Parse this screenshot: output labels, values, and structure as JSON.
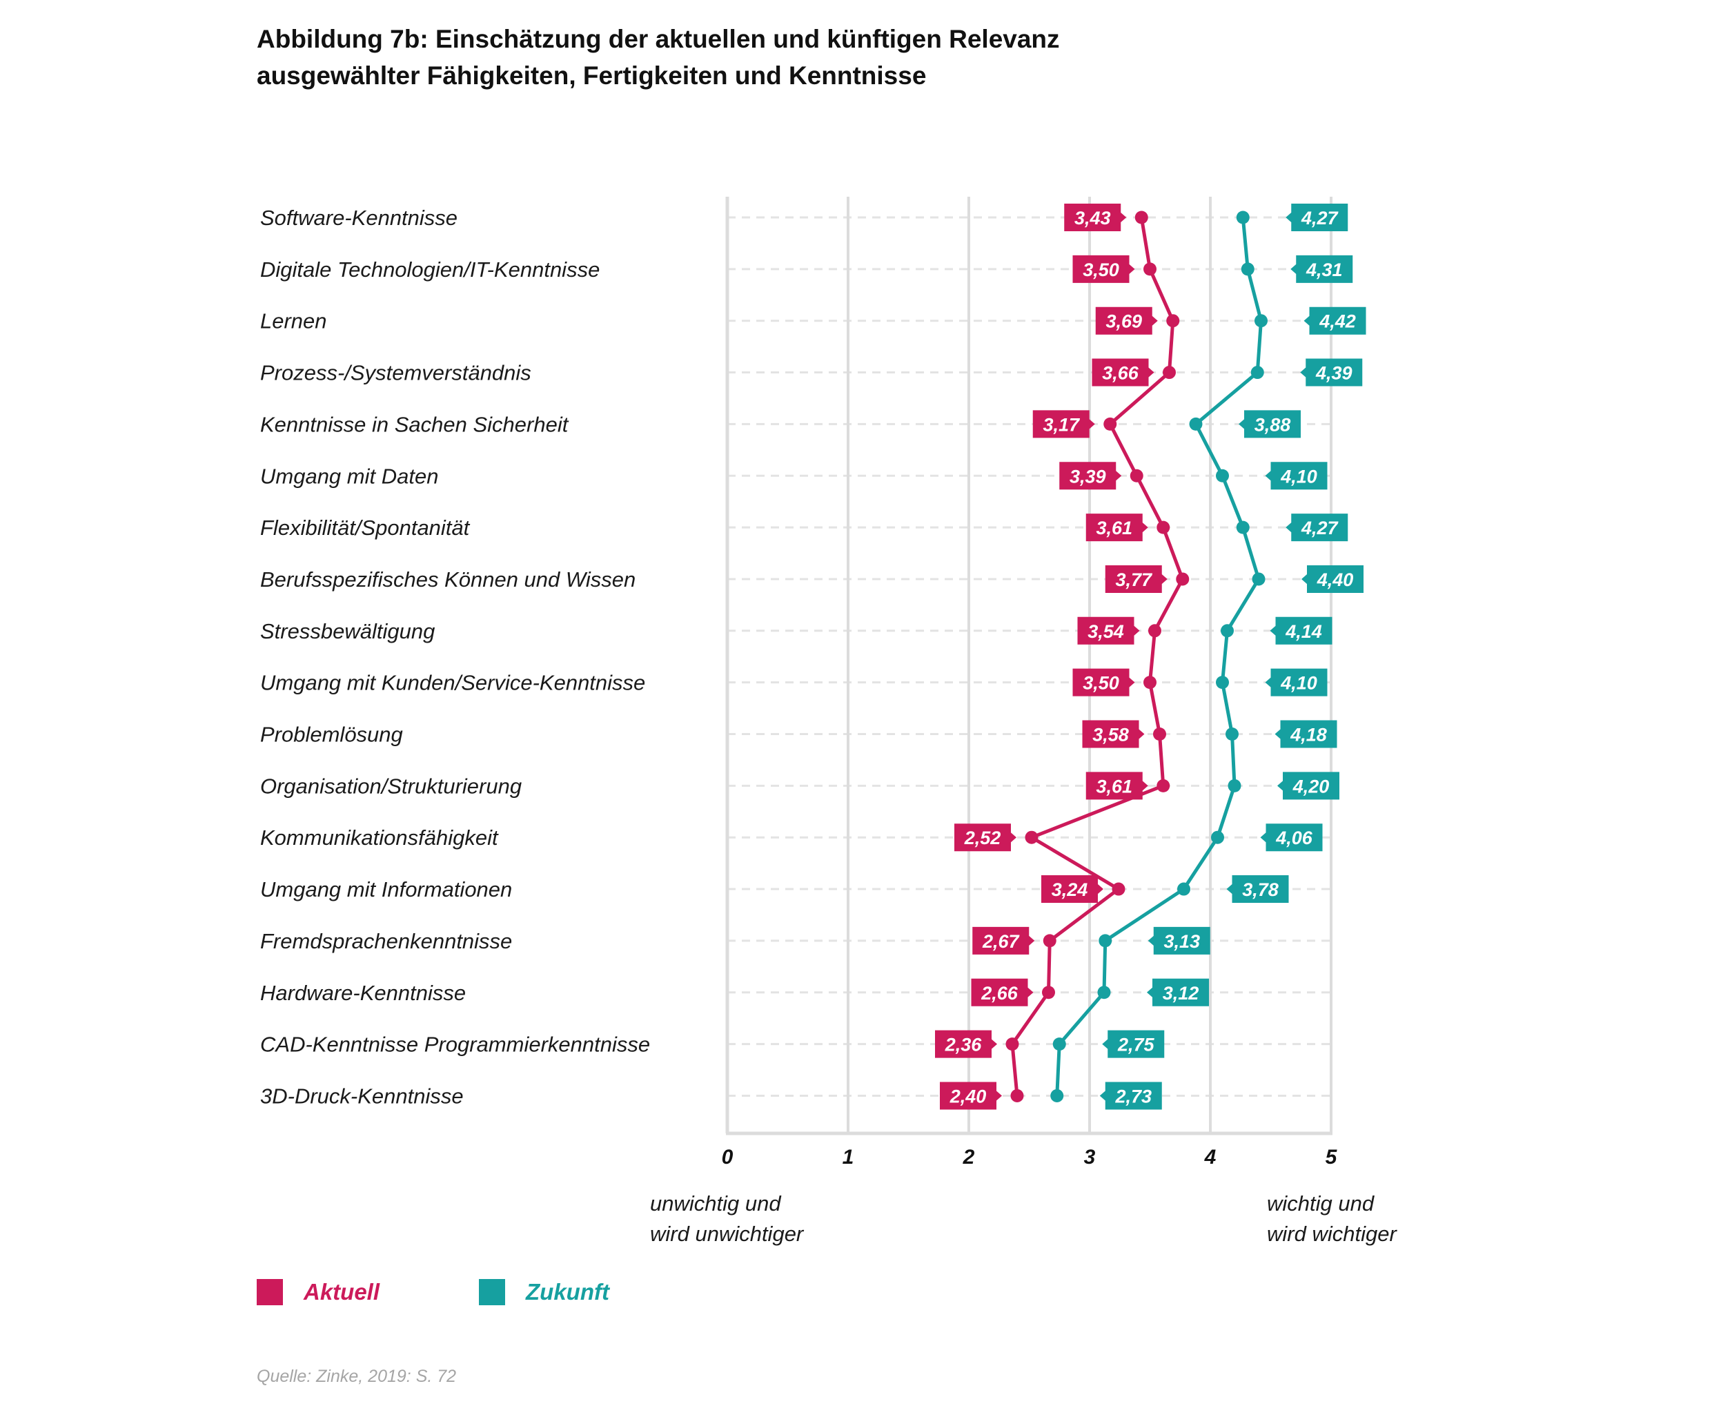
{
  "title_lines": [
    "Abbildung 7b: Einschätzung der aktuellen und künftigen Relevanz",
    "ausgewählter Fähigkeiten, Fertigkeiten und Kenntnisse"
  ],
  "axis_notes": {
    "left": [
      "unwichtig und",
      "wird unwichtiger"
    ],
    "right": [
      "wichtig und",
      "wird wichtiger"
    ]
  },
  "source": "Quelle: Zinke, 2019: S. 72",
  "colors": {
    "aktuell": "#cc1a5a",
    "zukunft": "#16a0a0",
    "grid": "#e3e3e3",
    "axis": "#dcdcdc"
  },
  "chart_data": {
    "type": "line",
    "orientation": "horizontal",
    "xlim": [
      0,
      5
    ],
    "xticks": [
      "0",
      "1",
      "2",
      "3",
      "4",
      "5"
    ],
    "grid": true,
    "legend_position": "bottom-left",
    "categories": [
      "Software-Kenntnisse",
      "Digitale Technologien/IT-Kenntnisse",
      "Lernen",
      "Prozess-/Systemverständnis",
      "Kenntnisse in Sachen Sicherheit",
      "Umgang mit Daten",
      "Flexibilität/Spontanität",
      "Berufsspezifisches Können und Wissen",
      "Stressbewältigung",
      "Umgang mit Kunden/Service-Kenntnisse",
      "Problemlösung",
      "Organisation/Strukturierung",
      "Kommunikationsfähigkeit",
      "Umgang mit Informationen",
      "Fremdsprachenkenntnisse",
      "Hardware-Kenntnisse",
      "CAD-Kenntnisse Programmierkenntnisse",
      "3D-Druck-Kenntnisse"
    ],
    "series": [
      {
        "name": "Aktuell",
        "key": "aktuell",
        "values": [
          3.43,
          3.5,
          3.69,
          3.66,
          3.17,
          3.39,
          3.61,
          3.77,
          3.54,
          3.5,
          3.58,
          3.61,
          2.52,
          3.24,
          2.67,
          2.66,
          2.36,
          2.4
        ],
        "labels": [
          "3,43",
          "3,50",
          "3,69",
          "3,66",
          "3,17",
          "3,39",
          "3,61",
          "3,77",
          "3,54",
          "3,50",
          "3,58",
          "3,61",
          "2,52",
          "3,24",
          "2,67",
          "2,66",
          "2,36",
          "2,40"
        ]
      },
      {
        "name": "Zukunft",
        "key": "zukunft",
        "values": [
          4.27,
          4.31,
          4.42,
          4.39,
          3.88,
          4.1,
          4.27,
          4.4,
          4.14,
          4.1,
          4.18,
          4.2,
          4.06,
          3.78,
          3.13,
          3.12,
          2.75,
          2.73
        ],
        "labels": [
          "4,27",
          "4,31",
          "4,42",
          "4,39",
          "3,88",
          "4,10",
          "4,27",
          "4,40",
          "4,14",
          "4,10",
          "4,18",
          "4,20",
          "4,06",
          "3,78",
          "3,13",
          "3,12",
          "2,75",
          "2,73"
        ]
      }
    ]
  }
}
